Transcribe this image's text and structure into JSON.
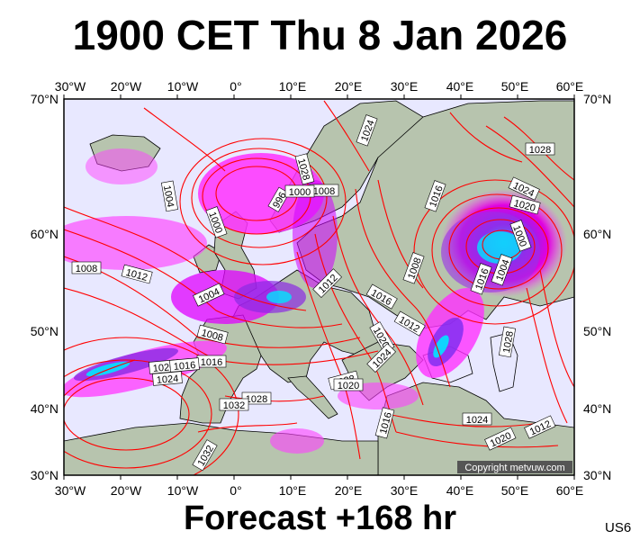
{
  "title": "1900 CET Thu 8 Jan 2026",
  "footer": "Forecast +168 hr",
  "code": "US6",
  "copyright": "Copyright metvuw.com",
  "lon_labels": [
    "30°W",
    "20°W",
    "10°W",
    "0°",
    "10°E",
    "20°E",
    "30°E",
    "40°E",
    "50°E",
    "60°E"
  ],
  "lat_labels": [
    "70°N",
    "60°N",
    "50°N",
    "40°N",
    "30°N"
  ],
  "isobar_labels": [
    "1020",
    "1024",
    "1028",
    "1004",
    "1000",
    "996",
    "1008",
    "1016",
    "1012",
    "1004",
    "1000",
    "1008",
    "1012",
    "1016",
    "1020",
    "1024",
    "1028",
    "1032",
    "1032",
    "1028",
    "1020",
    "1024",
    "1016",
    "1008",
    "1004",
    "1000",
    "1012",
    "1020",
    "1024",
    "1028",
    "1016",
    "1016",
    "1012",
    "1008",
    "1028",
    "1024",
    "1020",
    "1016"
  ],
  "colors": {
    "isobar": "#ff0000",
    "precip_light": "#ff00ff",
    "precip_mod": "#8a2be2",
    "precip_heavy": "#00e5ff",
    "ocean": "#e8e8ff",
    "land": "#b7c4ae"
  }
}
